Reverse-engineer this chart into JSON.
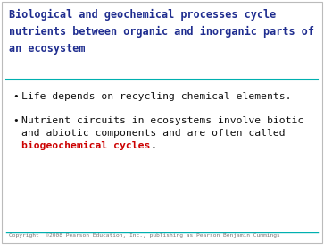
{
  "title_lines": [
    "Biological and geochemical processes cycle",
    "nutrients between organic and inorganic parts of",
    "an ecosystem"
  ],
  "title_color": "#1f2d8f",
  "title_fontsize": 8.5,
  "title_font": "monospace",
  "divider_color": "#00b0b0",
  "bullet1": "Life depends on recycling chemical elements.",
  "bullet2_line1": "Nutrient circuits in ecosystems involve biotic",
  "bullet2_line2": "and abiotic components and are often called",
  "bullet2_highlight": "biogeochemical cycles",
  "bullet2_end": ".",
  "bullet_color": "#111111",
  "highlight_color": "#cc0000",
  "bullet_fontsize": 8.2,
  "bullet_font": "monospace",
  "background_color": "#ffffff",
  "footer_text": "Copyright  ©2008 Pearson Education, Inc., publishing as Pearson Benjamin Cummings",
  "footer_color": "#777777",
  "footer_fontsize": 4.5,
  "border_color": "#bbbbbb",
  "bullet_symbol": "•"
}
